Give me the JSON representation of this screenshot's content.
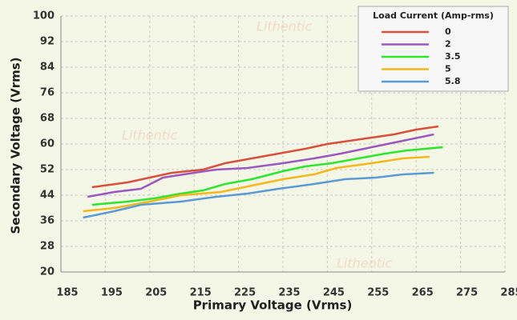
{
  "chart_data": {
    "type": "line",
    "watermark": "Lithentic",
    "xlabel": "Primary Voltage (Vrms)",
    "ylabel": "Secondary Voltage (Vrms)",
    "legend_title": "Load Current (Amp-rms)",
    "legend_position": "upper right",
    "grid": true,
    "xlim": [
      185,
      285
    ],
    "xticks": [
      185,
      195,
      205,
      215,
      225,
      235,
      245,
      255,
      265,
      275,
      285
    ],
    "ylim": [
      20,
      100
    ],
    "yticks": [
      20,
      28,
      36,
      44,
      52,
      60,
      68,
      76,
      84,
      92,
      100
    ],
    "series": [
      {
        "name": "0",
        "color": "#d9503c",
        "x": [
          192,
          200,
          205,
          210,
          217,
          222,
          230,
          240,
          245,
          250,
          260,
          265,
          270
        ],
        "values": [
          46.5,
          48,
          49.5,
          51,
          52,
          54,
          56,
          58.5,
          60,
          61,
          63,
          64.5,
          65.5
        ]
      },
      {
        "name": "2",
        "color": "#9b59c0",
        "x": [
          191,
          197,
          203,
          208,
          215,
          220,
          227,
          235,
          242,
          248,
          255,
          262,
          269
        ],
        "values": [
          43.5,
          45,
          46,
          49.5,
          51,
          52,
          52.5,
          54,
          55.5,
          57,
          59,
          61,
          63
        ]
      },
      {
        "name": "3.5",
        "color": "#2ee62e",
        "x": [
          192,
          200,
          206,
          212,
          217,
          222,
          228,
          235,
          240,
          246,
          252,
          258,
          263,
          271
        ],
        "values": [
          41,
          42,
          43,
          44.5,
          45.5,
          47.5,
          49,
          51.5,
          53,
          54,
          55.5,
          57,
          58,
          59
        ]
      },
      {
        "name": "5",
        "color": "#f4b81c",
        "x": [
          190,
          197,
          205,
          212,
          221,
          228,
          235,
          242,
          247,
          255,
          262,
          268
        ],
        "values": [
          39,
          40,
          42,
          44,
          45,
          47,
          49,
          50.5,
          52.5,
          54,
          55.5,
          56
        ]
      },
      {
        "name": "5.8",
        "color": "#5b9bd5",
        "x": [
          190,
          197,
          203,
          212,
          220,
          227,
          234,
          242,
          249,
          256,
          262,
          269
        ],
        "values": [
          37,
          39,
          41,
          42,
          43.5,
          44.5,
          46,
          47.5,
          49,
          49.5,
          50.5,
          51
        ]
      }
    ]
  }
}
